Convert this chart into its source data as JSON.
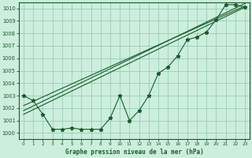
{
  "title": "Graphe pression niveau de la mer (hPa)",
  "bg_color": "#cceedd",
  "grid_color": "#99ccbb",
  "line_color": "#1a5c2a",
  "text_color": "#1a5c2a",
  "xlim": [
    -0.5,
    23.5
  ],
  "ylim": [
    999.5,
    1010.5
  ],
  "yticks": [
    1000,
    1001,
    1002,
    1003,
    1004,
    1005,
    1006,
    1007,
    1008,
    1009,
    1010
  ],
  "xticks": [
    0,
    1,
    2,
    3,
    4,
    5,
    6,
    7,
    8,
    9,
    10,
    11,
    12,
    13,
    14,
    15,
    16,
    17,
    18,
    19,
    20,
    21,
    22,
    23
  ],
  "pressure_data": [
    1003.0,
    1002.6,
    1001.5,
    1000.3,
    1000.3,
    1000.4,
    1000.3,
    1000.3,
    1000.3,
    1001.2,
    1003.0,
    1001.0,
    1001.8,
    1003.0,
    1004.8,
    1005.3,
    1006.2,
    1007.5,
    1007.7,
    1008.1,
    1009.1,
    1010.3,
    1010.3,
    1010.1
  ],
  "trend_x_start": 0,
  "trend_x_end": 23,
  "trend_lines": [
    [
      1001.5,
      1010.1
    ],
    [
      1001.8,
      1010.4
    ],
    [
      1002.2,
      1010.2
    ]
  ]
}
